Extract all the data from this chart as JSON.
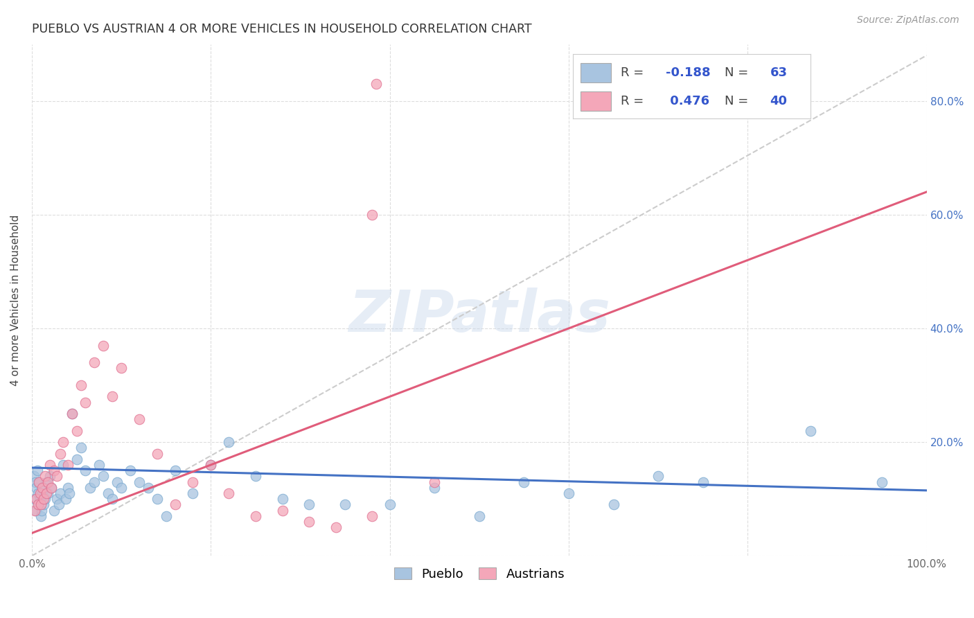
{
  "title": "PUEBLO VS AUSTRIAN 4 OR MORE VEHICLES IN HOUSEHOLD CORRELATION CHART",
  "source": "Source: ZipAtlas.com",
  "ylabel": "4 or more Vehicles in Household",
  "xlim": [
    0.0,
    1.0
  ],
  "ylim": [
    0.0,
    0.9
  ],
  "pueblo_color": "#a8c4e0",
  "pueblo_edge_color": "#7aaad0",
  "austrians_color": "#f4a7b9",
  "austrians_edge_color": "#e07090",
  "pueblo_line_color": "#4472c4",
  "austrians_line_color": "#e05c7a",
  "ref_line_color": "#cccccc",
  "pueblo_R": -0.188,
  "pueblo_N": 63,
  "austrians_R": 0.476,
  "austrians_N": 40,
  "watermark": "ZIPatlas",
  "background_color": "#ffffff",
  "grid_color": "#dddddd",
  "y_tick_color": "#4472c4",
  "title_color": "#333333",
  "source_color": "#999999",
  "legend_border_color": "#cccccc",
  "legend_R_label_color": "#444444",
  "legend_val_color": "#3355cc",
  "pueblo_x": [
    0.002,
    0.003,
    0.004,
    0.005,
    0.005,
    0.006,
    0.007,
    0.007,
    0.008,
    0.009,
    0.01,
    0.011,
    0.012,
    0.013,
    0.014,
    0.015,
    0.016,
    0.018,
    0.02,
    0.022,
    0.025,
    0.028,
    0.03,
    0.032,
    0.035,
    0.038,
    0.04,
    0.042,
    0.045,
    0.05,
    0.055,
    0.06,
    0.065,
    0.07,
    0.075,
    0.08,
    0.085,
    0.09,
    0.095,
    0.1,
    0.11,
    0.12,
    0.13,
    0.14,
    0.15,
    0.16,
    0.18,
    0.2,
    0.22,
    0.25,
    0.28,
    0.31,
    0.35,
    0.4,
    0.45,
    0.5,
    0.55,
    0.6,
    0.65,
    0.7,
    0.75,
    0.87,
    0.95
  ],
  "pueblo_y": [
    0.14,
    0.1,
    0.13,
    0.08,
    0.12,
    0.15,
    0.09,
    0.11,
    0.13,
    0.1,
    0.07,
    0.08,
    0.11,
    0.09,
    0.12,
    0.1,
    0.13,
    0.11,
    0.14,
    0.12,
    0.08,
    0.1,
    0.09,
    0.11,
    0.16,
    0.1,
    0.12,
    0.11,
    0.25,
    0.17,
    0.19,
    0.15,
    0.12,
    0.13,
    0.16,
    0.14,
    0.11,
    0.1,
    0.13,
    0.12,
    0.15,
    0.13,
    0.12,
    0.1,
    0.07,
    0.15,
    0.11,
    0.16,
    0.2,
    0.14,
    0.1,
    0.09,
    0.09,
    0.09,
    0.12,
    0.07,
    0.13,
    0.11,
    0.09,
    0.14,
    0.13,
    0.22,
    0.13
  ],
  "austrians_x": [
    0.003,
    0.005,
    0.007,
    0.008,
    0.009,
    0.01,
    0.012,
    0.013,
    0.015,
    0.016,
    0.018,
    0.02,
    0.022,
    0.025,
    0.028,
    0.032,
    0.035,
    0.04,
    0.045,
    0.05,
    0.055,
    0.06,
    0.07,
    0.08,
    0.09,
    0.1,
    0.12,
    0.14,
    0.16,
    0.18,
    0.2,
    0.22,
    0.25,
    0.28,
    0.31,
    0.34,
    0.38,
    0.45,
    0.38,
    0.385
  ],
  "austrians_y": [
    0.08,
    0.1,
    0.09,
    0.13,
    0.11,
    0.09,
    0.12,
    0.1,
    0.14,
    0.11,
    0.13,
    0.16,
    0.12,
    0.15,
    0.14,
    0.18,
    0.2,
    0.16,
    0.25,
    0.22,
    0.3,
    0.27,
    0.34,
    0.37,
    0.28,
    0.33,
    0.24,
    0.18,
    0.09,
    0.13,
    0.16,
    0.11,
    0.07,
    0.08,
    0.06,
    0.05,
    0.07,
    0.13,
    0.6,
    0.83
  ],
  "ref_line_x": [
    0.0,
    1.0
  ],
  "ref_line_y": [
    0.0,
    0.88
  ]
}
